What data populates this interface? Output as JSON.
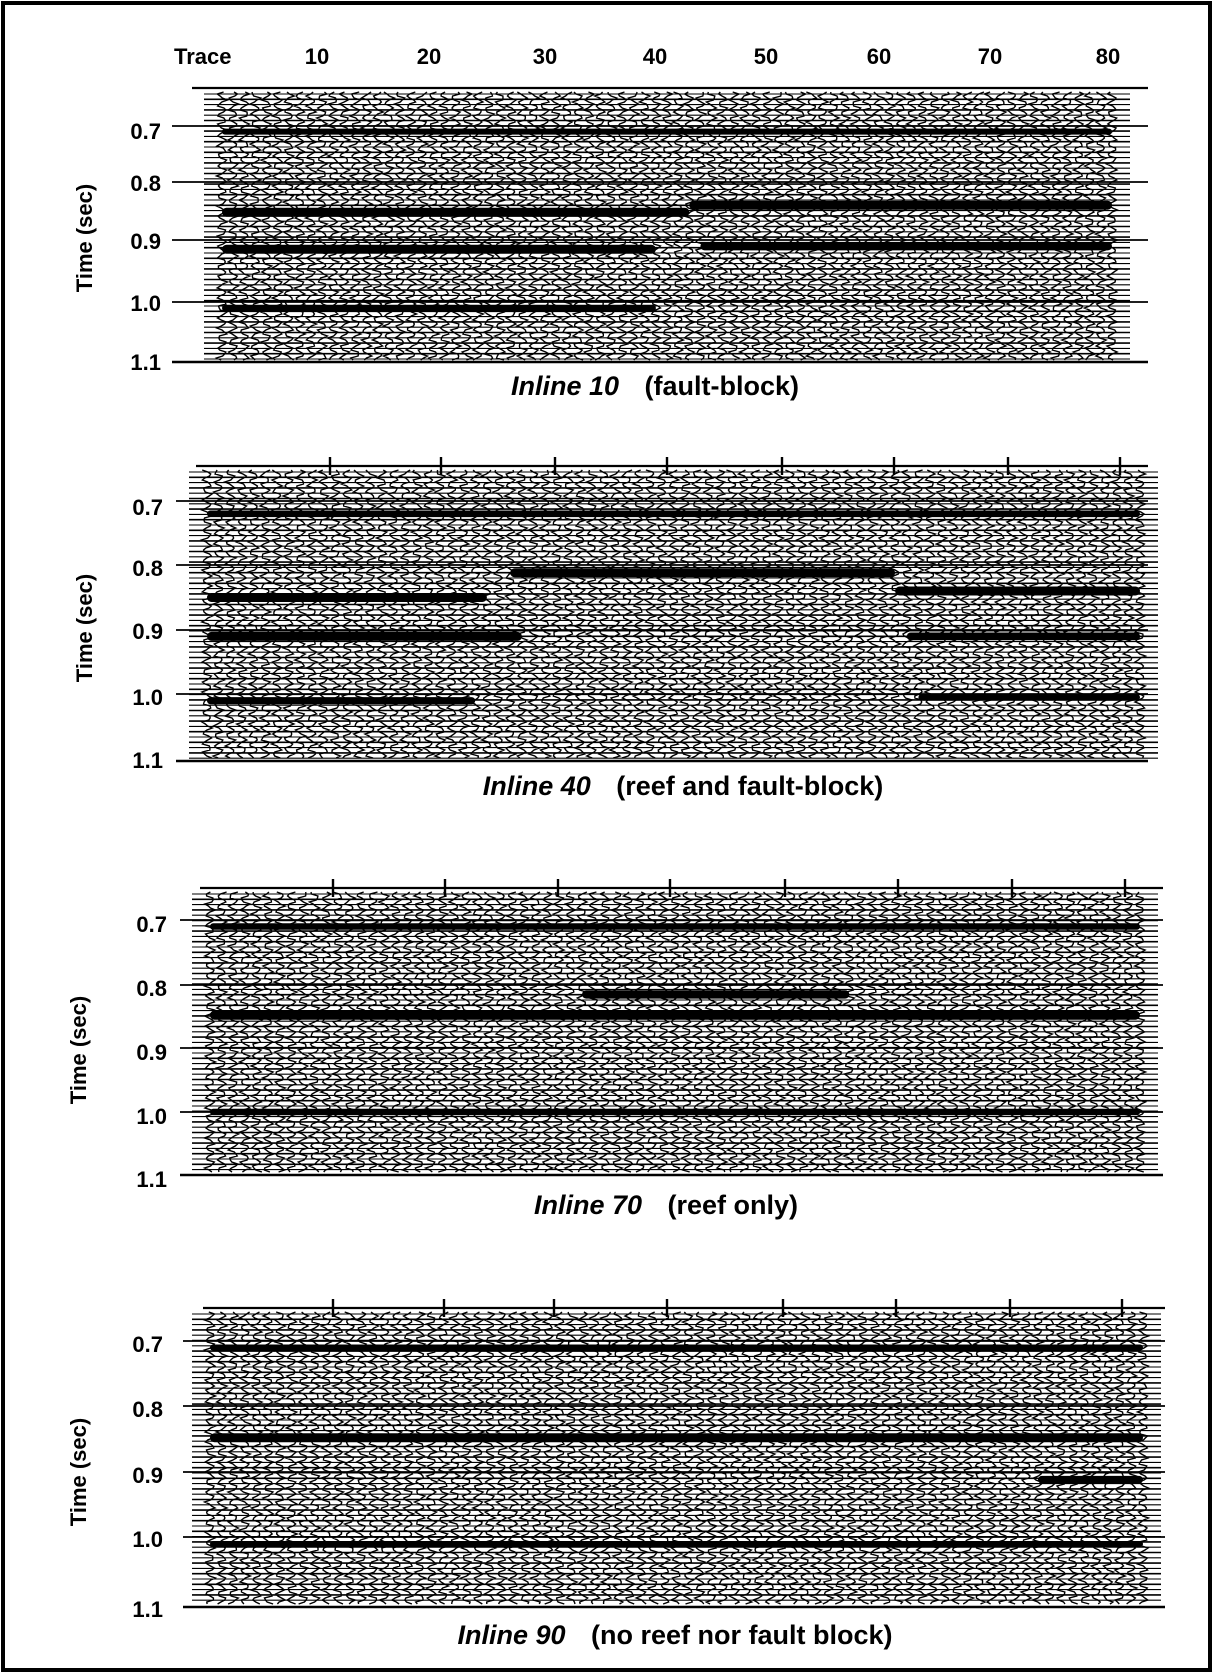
{
  "figure": {
    "frame_color": "#000000",
    "background": "#ffffff"
  },
  "chart_data": [
    {
      "type": "seismic-wiggle",
      "panel": "inline-10",
      "title_italic": "Inline 10",
      "title_note": "(fault-block)",
      "xlabel": "Trace",
      "ylabel": "Time (sec)",
      "xlim": [
        1,
        81
      ],
      "ylim": [
        0.66,
        1.1
      ],
      "x_ticks": [
        10,
        20,
        30,
        40,
        50,
        60,
        70,
        80
      ],
      "x_tick_labels": [
        "10",
        "20",
        "30",
        "40",
        "50",
        "60",
        "70",
        "80"
      ],
      "y_ticks": [
        0.7,
        0.8,
        0.9,
        1.0,
        1.1
      ],
      "y_tick_labels": [
        "0.7",
        "0.8",
        "0.9",
        "1.0",
        "1.1"
      ],
      "trace_count": 81,
      "reflectors": [
        {
          "t": 0.71,
          "from": 1,
          "to": 81,
          "strength": 0.5
        },
        {
          "t": 0.852,
          "from": 1,
          "to": 43,
          "strength": 1.0
        },
        {
          "t": 0.84,
          "from": 43,
          "to": 81,
          "strength": 1.0
        },
        {
          "t": 0.915,
          "from": 1,
          "to": 40,
          "strength": 1.0
        },
        {
          "t": 0.91,
          "from": 44,
          "to": 81,
          "strength": 0.9
        },
        {
          "t": 1.01,
          "from": 1,
          "to": 40,
          "strength": 0.6
        }
      ]
    },
    {
      "type": "seismic-wiggle",
      "panel": "inline-40",
      "title_italic": "Inline 40",
      "title_note": "(reef and fault-block)",
      "xlabel": "",
      "ylabel": "Time (sec)",
      "xlim": [
        1,
        81
      ],
      "ylim": [
        0.64,
        1.1
      ],
      "x_ticks": [
        10,
        20,
        30,
        40,
        50,
        60,
        70,
        80
      ],
      "x_tick_labels": [],
      "y_ticks": [
        0.7,
        0.8,
        0.9,
        1.0,
        1.1
      ],
      "y_tick_labels": [
        "0.7",
        "0.8",
        "0.9",
        "1.0",
        "1.1"
      ],
      "trace_count": 81,
      "reflectors": [
        {
          "t": 0.72,
          "from": 1,
          "to": 81,
          "strength": 0.6
        },
        {
          "t": 0.85,
          "from": 1,
          "to": 25,
          "strength": 1.0
        },
        {
          "t": 0.812,
          "from": 27,
          "to": 60,
          "strength": 1.0
        },
        {
          "t": 0.84,
          "from": 60,
          "to": 81,
          "strength": 1.0
        },
        {
          "t": 0.91,
          "from": 1,
          "to": 28,
          "strength": 1.0
        },
        {
          "t": 0.91,
          "from": 61,
          "to": 81,
          "strength": 0.8
        },
        {
          "t": 1.01,
          "from": 1,
          "to": 24,
          "strength": 0.7
        },
        {
          "t": 1.005,
          "from": 62,
          "to": 81,
          "strength": 0.6
        }
      ]
    },
    {
      "type": "seismic-wiggle",
      "panel": "inline-70",
      "title_italic": "Inline 70",
      "title_note": "(reef only)",
      "xlabel": "",
      "ylabel": "Time (sec)",
      "xlim": [
        1,
        81
      ],
      "ylim": [
        0.64,
        1.1
      ],
      "x_ticks": [
        10,
        20,
        30,
        40,
        50,
        60,
        70,
        80
      ],
      "x_tick_labels": [],
      "y_ticks": [
        0.7,
        0.8,
        0.9,
        1.0,
        1.1
      ],
      "y_tick_labels": [
        "0.7",
        "0.8",
        "0.9",
        "1.0",
        "1.1"
      ],
      "trace_count": 81,
      "reflectors": [
        {
          "t": 0.71,
          "from": 1,
          "to": 81,
          "strength": 0.6
        },
        {
          "t": 0.848,
          "from": 1,
          "to": 81,
          "strength": 1.0
        },
        {
          "t": 0.815,
          "from": 33,
          "to": 56,
          "strength": 0.9
        },
        {
          "t": 1.0,
          "from": 1,
          "to": 81,
          "strength": 0.6
        }
      ]
    },
    {
      "type": "seismic-wiggle",
      "panel": "inline-90",
      "title_italic": "Inline 90",
      "title_note": "(no reef nor fault block)",
      "xlabel": "",
      "ylabel": "Time (sec)",
      "xlim": [
        1,
        81
      ],
      "ylim": [
        0.64,
        1.1
      ],
      "x_ticks": [
        10,
        20,
        30,
        40,
        50,
        60,
        70,
        80
      ],
      "x_tick_labels": [],
      "y_ticks": [
        0.7,
        0.8,
        0.9,
        1.0,
        1.1
      ],
      "y_tick_labels": [
        "0.7",
        "0.8",
        "0.9",
        "1.0",
        "1.1"
      ],
      "trace_count": 81,
      "reflectors": [
        {
          "t": 0.71,
          "from": 1,
          "to": 81,
          "strength": 0.5
        },
        {
          "t": 0.848,
          "from": 1,
          "to": 81,
          "strength": 1.0
        },
        {
          "t": 0.912,
          "from": 72,
          "to": 81,
          "strength": 0.8
        },
        {
          "t": 1.01,
          "from": 1,
          "to": 81,
          "strength": 0.5
        }
      ]
    }
  ]
}
